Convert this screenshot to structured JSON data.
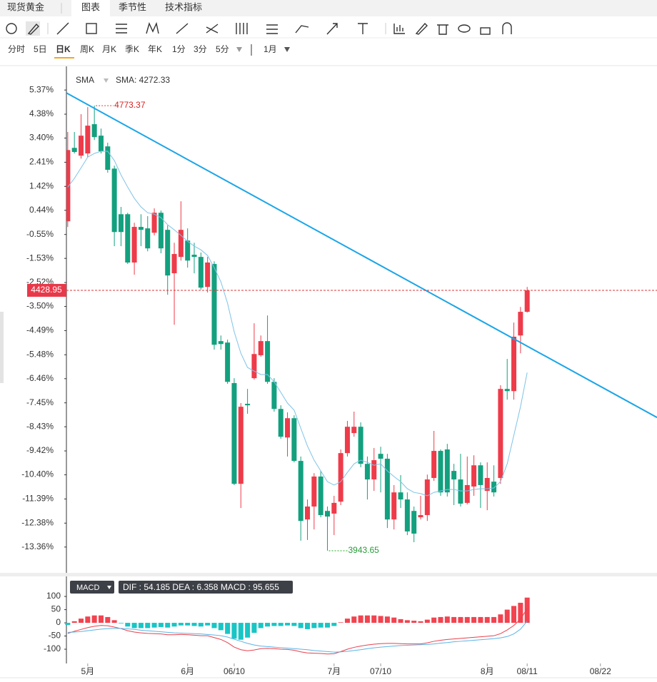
{
  "tabs": [
    "现货黄金",
    "图表",
    "季节性",
    "技术指标"
  ],
  "periods": [
    "分时",
    "5日",
    "日K",
    "周K",
    "月K",
    "季K",
    "年K",
    "1分",
    "3分",
    "5分"
  ],
  "active_period": 2,
  "range": "1月",
  "chart_data": [
    {
      "type": "candlestick",
      "up_color": "#ee3b4a",
      "down_color": "#13a07e",
      "xlim": [
        -0.2,
        88.5
      ],
      "ylim": [
        -14.33,
        6.34
      ],
      "yticks": [
        {
          "value": 5.37,
          "label": "5.37%"
        },
        {
          "value": 4.38,
          "label": "4.38%"
        },
        {
          "value": 3.4,
          "label": "3.40%"
        },
        {
          "value": 2.41,
          "label": "2.41%"
        },
        {
          "value": 1.42,
          "label": "1.42%"
        },
        {
          "value": 0.44,
          "label": "0.44%"
        },
        {
          "value": -0.55,
          "label": "-0.55%"
        },
        {
          "value": -1.53,
          "label": "-1.53%"
        },
        {
          "value": -2.52,
          "label": "-2.52%"
        },
        {
          "value": -3.5,
          "label": "-3.50%"
        },
        {
          "value": -4.49,
          "label": "-4.49%"
        },
        {
          "value": -5.48,
          "label": "-5.48%"
        },
        {
          "value": -6.46,
          "label": "-6.46%"
        },
        {
          "value": -7.45,
          "label": "-7.45%"
        },
        {
          "value": -8.43,
          "label": "-8.43%"
        },
        {
          "value": -9.42,
          "label": "-9.42%"
        },
        {
          "value": -10.4,
          "label": "-10.40%"
        },
        {
          "value": -11.39,
          "label": "-11.39%"
        },
        {
          "value": -12.38,
          "label": "-12.38%"
        },
        {
          "value": -13.36,
          "label": "-13.36%"
        }
      ],
      "open": [
        -0.01,
        3.0,
        2.68,
        2.77,
        3.97,
        3.5,
        3.06,
        2.15,
        0.28,
        0.28,
        -1.7,
        -0.24,
        -0.3,
        -0.48,
        0.34,
        -0.36,
        -2.14,
        -1.47,
        -0.8,
        -1.38,
        -1.47,
        -2.7,
        -1.76,
        -4.92,
        -4.98,
        -6.64,
        -10.77,
        -7.49,
        -6.44,
        -5.5,
        -4.92,
        -6.59,
        -7.7,
        -8.87,
        -8.08,
        -9.83,
        -12.23,
        -11.7,
        -10.47,
        -11.88,
        -11.99,
        -11.5,
        -9.51,
        -8.69,
        -8.43,
        -9.95,
        -10.59,
        -9.54,
        -9.74,
        -12.23,
        -11.12,
        -11.41,
        -11.88,
        -12.14,
        -12.05,
        -10.53,
        -9.42,
        -9.36,
        -10.24,
        -10.59,
        -11.55,
        -10.88,
        -10.01,
        -11.06,
        -10.68,
        -10.53,
        -6.88,
        -6.97,
        -4.69,
        -3.72
      ],
      "high": [
        3.65,
        3.65,
        4.38,
        4.67,
        4.73,
        3.79,
        3.21,
        2.27,
        0.58,
        0.34,
        -0.07,
        0.28,
        0.2,
        0.52,
        0.43,
        -0.18,
        -0.89,
        0.81,
        -0.3,
        -0.89,
        -1.29,
        -1.47,
        -1.65,
        -4.69,
        -4.86,
        -6.44,
        -7.46,
        -6.88,
        -4.19,
        -4.69,
        -3.87,
        -6.44,
        -7.55,
        -7.84,
        -7.96,
        -9.65,
        -11.41,
        -10.33,
        -10.24,
        -11.7,
        -11.26,
        -9.36,
        -8.19,
        -7.81,
        -8.25,
        -9.65,
        -9.3,
        -9.25,
        -9.54,
        -10.82,
        -10.41,
        -11.12,
        -11.7,
        -11.26,
        -10.39,
        -8.6,
        -9.36,
        -9.13,
        -9.95,
        -9.54,
        -9.65,
        -9.6,
        -9.89,
        -9.89,
        -10.01,
        -6.73,
        -5.65,
        -4.16,
        -3.52,
        -2.7
      ],
      "low": [
        -0.24,
        2.77,
        2.56,
        2.62,
        3.32,
        2.77,
        1.98,
        -1.03,
        -1.03,
        -1.76,
        -2.2,
        -1.03,
        -1.24,
        -0.59,
        -1.32,
        -3.02,
        -4.25,
        -1.62,
        -1.91,
        -2.14,
        -2.81,
        -2.93,
        -5.27,
        -5.27,
        -6.67,
        -10.82,
        -11.76,
        -7.9,
        -6.5,
        -5.56,
        -6.67,
        -7.81,
        -8.92,
        -9.65,
        -9.89,
        -13.1,
        -13.07,
        -12.64,
        -12.14,
        -13.51,
        -12.87,
        -11.64,
        -9.65,
        -8.84,
        -10.09,
        -11.41,
        -11.06,
        -11.12,
        -12.58,
        -12.64,
        -11.76,
        -12.87,
        -13.16,
        -12.23,
        -12.29,
        -10.65,
        -11.26,
        -11.29,
        -11.64,
        -11.7,
        -11.61,
        -11.26,
        -11.76,
        -11.85,
        -11.29,
        -10.77,
        -7.32,
        -7.32,
        -5.42,
        -3.75
      ],
      "close": [
        2.91,
        2.83,
        3.5,
        3.91,
        3.44,
        2.86,
        2.1,
        -0.45,
        -0.45,
        -1.7,
        -0.24,
        -0.36,
        -1.12,
        0.34,
        -1.12,
        -2.23,
        -1.35,
        -0.36,
        -1.62,
        -1.47,
        -2.73,
        -1.7,
        -5.07,
        -5.04,
        -6.59,
        -10.77,
        -7.61,
        -7.55,
        -5.45,
        -4.92,
        -6.59,
        -7.7,
        -8.84,
        -8.08,
        -9.83,
        -12.29,
        -11.7,
        -10.47,
        -12.05,
        -12.11,
        -11.55,
        -9.51,
        -8.43,
        -8.43,
        -9.95,
        -10.59,
        -9.8,
        -9.74,
        -12.23,
        -11.12,
        -11.41,
        -12.72,
        -12.81,
        -12.05,
        -10.59,
        -9.42,
        -11.12,
        -11.12,
        -10.59,
        -11.58,
        -10.82,
        -10.01,
        -10.82,
        -10.53,
        -11.12,
        -6.88,
        -6.97,
        -4.74,
        -3.72,
        -2.84
      ],
      "sma": {
        "name": "SMA",
        "label": "SMA: 4272.33",
        "color": "#7ec3e8",
        "values": [
          1.39,
          1.75,
          2.18,
          2.62,
          2.77,
          2.86,
          2.86,
          2.48,
          1.89,
          1.39,
          0.93,
          0.58,
          0.34,
          0.28,
          0.14,
          -0.15,
          -0.36,
          -0.59,
          -0.83,
          -1.03,
          -1.18,
          -1.41,
          -1.91,
          -2.49,
          -3.37,
          -4.54,
          -5.42,
          -6.0,
          -6.15,
          -6.29,
          -6.29,
          -6.59,
          -7.02,
          -7.46,
          -7.75,
          -8.49,
          -9.22,
          -9.8,
          -10.24,
          -10.68,
          -10.82,
          -10.68,
          -10.3,
          -9.95,
          -9.8,
          -9.89,
          -10.01,
          -9.95,
          -10.24,
          -10.47,
          -10.68,
          -10.97,
          -11.12,
          -11.17,
          -11.26,
          -11.12,
          -11.06,
          -11.0,
          -11.0,
          -11.06,
          -11.06,
          -11.0,
          -10.97,
          -10.97,
          -10.94,
          -10.68,
          -9.95,
          -8.78,
          -7.61,
          -6.21
        ]
      },
      "trendline": {
        "color": "#1aa5e8",
        "x": [
          -0.2,
          88.5
        ],
        "y": [
          5.25,
          -8.05
        ]
      },
      "high_label": "4773.37",
      "low_label": "3943.65",
      "last_label": "4428.95"
    },
    {
      "type": "macd",
      "indicator": "MACD",
      "xlim": [
        -0.2,
        88.5
      ],
      "ylim": [
        -154,
        157
      ],
      "yticks": [
        100,
        50,
        0,
        -50,
        -100
      ],
      "xticks": [
        {
          "value": 3,
          "label": "5月"
        },
        {
          "value": 18,
          "label": "6月"
        },
        {
          "value": 25,
          "label": "06/10"
        },
        {
          "value": 40,
          "label": "7月"
        },
        {
          "value": 47,
          "label": "07/10"
        },
        {
          "value": 63,
          "label": "8月"
        },
        {
          "value": 69,
          "label": "08/11"
        },
        {
          "value": 80,
          "label": "08/22"
        }
      ],
      "series": [
        {
          "name": "DIF",
          "color": "#e8414e",
          "values": [
            -40,
            -32,
            -25,
            -18,
            -13,
            -10,
            -11,
            -16,
            -22,
            -30,
            -35,
            -38,
            -40,
            -41,
            -42,
            -45,
            -45,
            -44,
            -45,
            -47,
            -49,
            -49,
            -56,
            -63,
            -75,
            -92,
            -102,
            -106,
            -103,
            -98,
            -97,
            -98,
            -100,
            -101,
            -104,
            -110,
            -114,
            -115,
            -116,
            -118,
            -117,
            -109,
            -100,
            -93,
            -88,
            -84,
            -81,
            -79,
            -78,
            -78,
            -79,
            -80,
            -80,
            -80,
            -76,
            -70,
            -66,
            -63,
            -61,
            -59,
            -57,
            -55,
            -53,
            -51,
            -49,
            -41,
            -27,
            -10,
            14,
            54.185
          ]
        },
        {
          "name": "DEA",
          "color": "#5ab4e6",
          "values": [
            -36,
            -35,
            -33,
            -30,
            -27,
            -24,
            -22,
            -21,
            -21,
            -23,
            -25,
            -28,
            -30,
            -32,
            -34,
            -36,
            -38,
            -39,
            -40,
            -41,
            -42,
            -44,
            -46,
            -49,
            -54,
            -62,
            -70,
            -78,
            -84,
            -88,
            -90,
            -92,
            -94,
            -96,
            -98,
            -100,
            -102,
            -105,
            -107,
            -109,
            -111,
            -110,
            -108,
            -105,
            -102,
            -98,
            -95,
            -92,
            -90,
            -88,
            -86,
            -85,
            -84,
            -83,
            -82,
            -80,
            -77,
            -75,
            -72,
            -70,
            -68,
            -66,
            -64,
            -62,
            -60,
            -57,
            -52,
            -42,
            -24,
            6.358
          ]
        }
      ],
      "histogram": {
        "name": "MACD",
        "up_color": "#f2434f",
        "down_color": "#19c5c5",
        "values": [
          -8,
          6,
          16,
          24,
          28,
          28,
          22,
          10,
          -2,
          -14,
          -20,
          -20,
          -20,
          -18,
          -16,
          -18,
          -14,
          -10,
          -10,
          -12,
          -14,
          -10,
          -20,
          -28,
          -42,
          -60,
          -64,
          -56,
          -38,
          -20,
          -14,
          -12,
          -12,
          -10,
          -12,
          -20,
          -24,
          -20,
          -18,
          -18,
          -12,
          2,
          16,
          24,
          28,
          28,
          28,
          26,
          24,
          20,
          14,
          10,
          8,
          6,
          12,
          20,
          22,
          24,
          22,
          22,
          22,
          22,
          22,
          22,
          22,
          32,
          50,
          64,
          76,
          95.655
        ]
      }
    }
  ]
}
